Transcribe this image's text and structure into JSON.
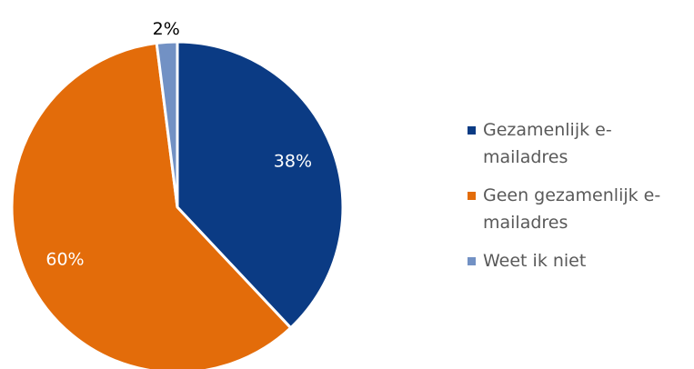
{
  "chart_data": {
    "type": "pie",
    "categories": [
      "Gezamenlijk e-mailadres",
      "Geen gezamenlijk e-mailadres",
      "Weet ik niet"
    ],
    "values": [
      38,
      60,
      2
    ],
    "value_labels": [
      "38%",
      "60%",
      "2%"
    ],
    "colors": [
      "#0b3b84",
      "#e36c0a",
      "#7291c4"
    ],
    "legend": "right"
  }
}
